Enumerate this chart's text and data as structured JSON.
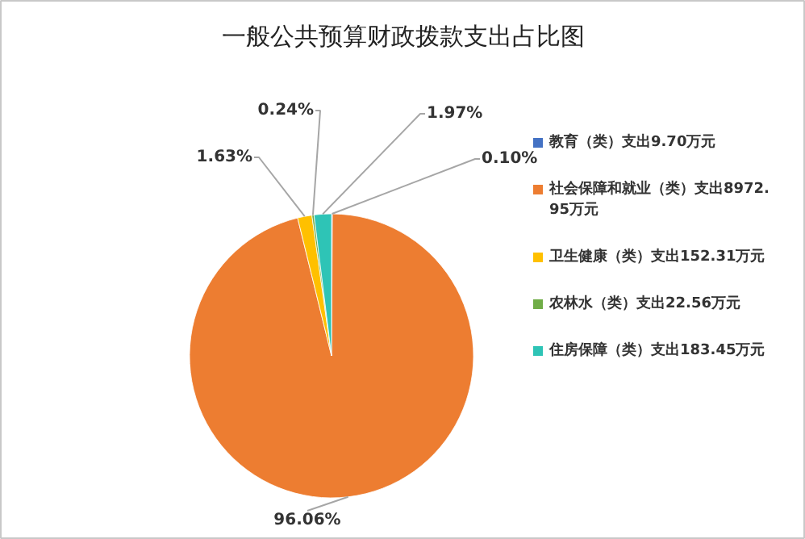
{
  "chart_data": {
    "type": "pie",
    "title": "一般公共预算财政拨款支出占比图",
    "categories": [
      "教育（类）支出9.70万元",
      "社会保障和就业（类）支出8972.95万元",
      "卫生健康（类）支出152.31万元",
      "农林水（类）支出22.56万元",
      "住房保障（类）支出183.45万元"
    ],
    "values": [
      0.1,
      96.06,
      1.63,
      0.24,
      1.97
    ],
    "colors": [
      "#4472c4",
      "#ed7d31",
      "#ffc000",
      "#70ad47",
      "#2ec4b6"
    ],
    "value_labels": [
      "0.10%",
      "96.06%",
      "1.63%",
      "0.24%",
      "1.97%"
    ],
    "legend": "right"
  }
}
